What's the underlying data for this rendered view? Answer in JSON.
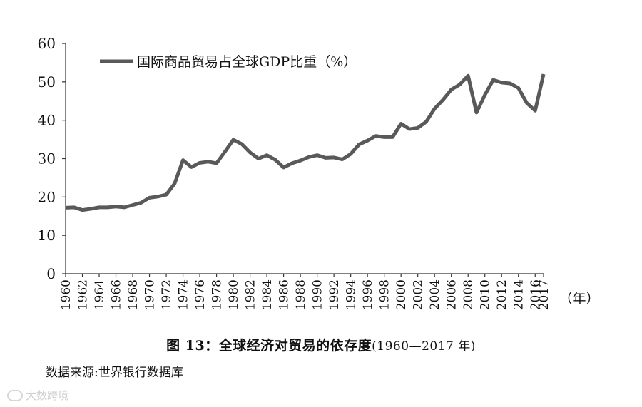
{
  "chart_data": {
    "type": "line",
    "title": "图 13：全球经济对贸易的依存度",
    "title_range": "(1960—2017 年)",
    "xlabel": "（年）",
    "ylabel": "",
    "ylim": [
      0,
      60
    ],
    "yticks": [
      0,
      10,
      20,
      30,
      40,
      50,
      60
    ],
    "xticks": [
      1960,
      1962,
      1964,
      1966,
      1968,
      1970,
      1972,
      1974,
      1976,
      1978,
      1980,
      1982,
      1984,
      1986,
      1988,
      1990,
      1992,
      1994,
      1996,
      1998,
      2000,
      2002,
      2004,
      2006,
      2008,
      2010,
      2012,
      2014,
      2016,
      2017
    ],
    "grid": false,
    "legend_position": "top-left",
    "color": "#595959",
    "series": [
      {
        "name": "国际商品贸易占全球GDP比重（%）",
        "x": [
          1960,
          1961,
          1962,
          1963,
          1964,
          1965,
          1966,
          1967,
          1968,
          1969,
          1970,
          1971,
          1972,
          1973,
          1974,
          1975,
          1976,
          1977,
          1978,
          1979,
          1980,
          1981,
          1982,
          1983,
          1984,
          1985,
          1986,
          1987,
          1988,
          1989,
          1990,
          1991,
          1992,
          1993,
          1994,
          1995,
          1996,
          1997,
          1998,
          1999,
          2000,
          2001,
          2002,
          2003,
          2004,
          2005,
          2006,
          2007,
          2008,
          2009,
          2010,
          2011,
          2012,
          2013,
          2014,
          2015,
          2016,
          2017
        ],
        "values": [
          17.2,
          17.3,
          16.6,
          16.9,
          17.3,
          17.3,
          17.5,
          17.3,
          17.9,
          18.5,
          19.8,
          20.1,
          20.6,
          23.5,
          29.6,
          27.8,
          28.9,
          29.2,
          28.8,
          31.8,
          34.9,
          33.8,
          31.6,
          30.0,
          30.9,
          29.7,
          27.7,
          28.8,
          29.5,
          30.4,
          30.9,
          30.2,
          30.3,
          29.8,
          31.2,
          33.7,
          34.7,
          35.9,
          35.6,
          35.6,
          39.1,
          37.7,
          38.0,
          39.6,
          43.0,
          45.3,
          48.0,
          49.3,
          51.6,
          42.0,
          46.6,
          50.5,
          49.8,
          49.6,
          48.4,
          44.5,
          42.5,
          52.0
        ]
      }
    ]
  },
  "footer": {
    "caption_bold": "图 13：全球经济对贸易的依存度",
    "caption_range": "(1960—2017 年)",
    "source": "数据来源:世界银行数据库",
    "watermark": "大数跨境"
  }
}
